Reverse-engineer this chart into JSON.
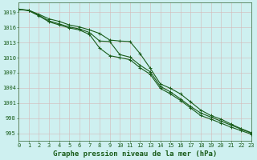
{
  "title": "Graphe pression niveau de la mer (hPa)",
  "background_color": "#cef0f0",
  "grid_color": "#b8d8d0",
  "line_color": "#1a5c1a",
  "x_values": [
    0,
    1,
    2,
    3,
    4,
    5,
    6,
    7,
    8,
    9,
    10,
    11,
    12,
    13,
    14,
    15,
    16,
    17,
    18,
    19,
    20,
    21,
    22,
    23
  ],
  "y_line1": [
    1019.6,
    1019.4,
    1018.6,
    1017.7,
    1017.2,
    1016.5,
    1016.1,
    1015.5,
    1014.8,
    1013.5,
    1013.3,
    1013.2,
    1010.8,
    1007.9,
    1004.8,
    1003.9,
    1002.8,
    1001.2,
    999.6,
    998.5,
    997.8,
    996.8,
    995.9,
    995.1
  ],
  "y_line2": [
    1019.6,
    1019.4,
    1018.4,
    1017.3,
    1016.7,
    1016.1,
    1015.7,
    1015.0,
    1013.3,
    1013.2,
    1010.6,
    1010.1,
    1008.5,
    1007.2,
    1004.3,
    1003.2,
    1001.8,
    1000.3,
    999.0,
    998.2,
    997.4,
    996.6,
    995.8,
    995.0
  ],
  "y_line3": [
    1019.6,
    1019.3,
    1018.3,
    1017.1,
    1016.5,
    1015.9,
    1015.5,
    1014.6,
    1011.9,
    1010.4,
    1010.0,
    1009.6,
    1008.0,
    1006.7,
    1003.9,
    1002.8,
    1001.5,
    1000.0,
    998.5,
    997.8,
    997.0,
    996.2,
    995.5,
    994.8
  ],
  "ylim": [
    993.5,
    1021.0
  ],
  "yticks": [
    995,
    998,
    1001,
    1004,
    1007,
    1010,
    1013,
    1016,
    1019
  ],
  "xlim": [
    0,
    23
  ],
  "xticks": [
    0,
    1,
    2,
    3,
    4,
    5,
    6,
    7,
    8,
    9,
    10,
    11,
    12,
    13,
    14,
    15,
    16,
    17,
    18,
    19,
    20,
    21,
    22,
    23
  ],
  "marker": "+",
  "marker_size": 3.5,
  "line_width": 0.8,
  "title_fontsize": 6.5,
  "tick_fontsize": 5.0,
  "title_color": "#1a5c1a",
  "axis_color": "#336633"
}
